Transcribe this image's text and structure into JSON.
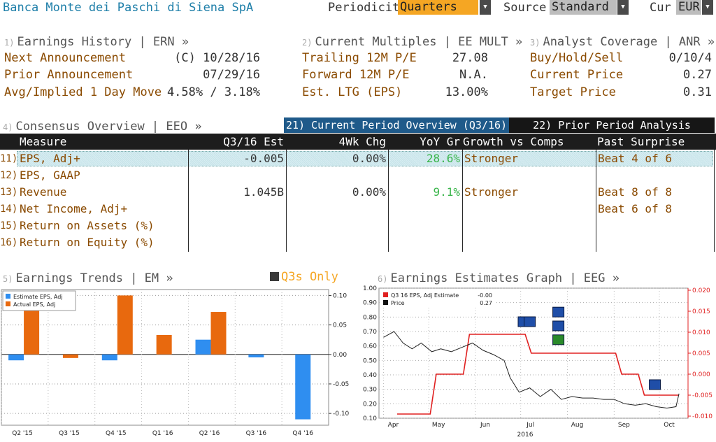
{
  "header": {
    "company": "Banca Monte dei Paschi di Siena SpA",
    "periodicity_label": "Periodicity",
    "periodicity_value": "Quarters",
    "source_label": "Source",
    "source_value": "Standard",
    "cur_label": "Cur",
    "cur_value": "EUR"
  },
  "earnings_history": {
    "num": "1)",
    "title": "Earnings History | ERN »",
    "rows": [
      {
        "label": "Next Announcement",
        "value": "(C)  10/28/16"
      },
      {
        "label": "Prior Announcement",
        "value": "07/29/16"
      },
      {
        "label": "Avg/Implied 1 Day Move",
        "value": "4.58% / 3.18%"
      }
    ]
  },
  "current_multiples": {
    "num": "2)",
    "title": "Current Multiples | EE MULT »",
    "rows": [
      {
        "label": "Trailing 12M P/E",
        "value": "27.08"
      },
      {
        "label": "Forward 12M P/E",
        "value": "N.A."
      },
      {
        "label": "Est. LTG (EPS)",
        "value": "13.00%"
      }
    ]
  },
  "analyst_coverage": {
    "num": "3)",
    "title": "Analyst Coverage | ANR »",
    "rows": [
      {
        "label": "Buy/Hold/Sell",
        "value": "0/10/4"
      },
      {
        "label": "Current Price",
        "value": "0.27"
      },
      {
        "label": "Target Price",
        "value": "0.31"
      }
    ]
  },
  "consensus": {
    "num": "4)",
    "title": "Consensus Overview | EEO »",
    "tab_current": "21) Current Period Overview (Q3/16)",
    "tab_prior": "22) Prior Period Analysis (Q2/16)",
    "columns": [
      "Measure",
      "Q3/16 Est",
      "4Wk Chg",
      "YoY Gr",
      "Growth vs Comps",
      "Past Surprise"
    ],
    "rows": [
      {
        "num": "11)",
        "measure": "EPS, Adj+",
        "est": "-0.005",
        "chg": "0.00%",
        "yoy": "28.6%",
        "growth": "Stronger",
        "surprise": "Beat 4 of 6"
      },
      {
        "num": "12)",
        "measure": "EPS, GAAP",
        "est": "",
        "chg": "",
        "yoy": "",
        "growth": "",
        "surprise": ""
      },
      {
        "num": "13)",
        "measure": "Revenue",
        "est": "1.045B",
        "chg": "0.00%",
        "yoy": "9.1%",
        "growth": "Stronger",
        "surprise": "Beat 8 of 8"
      },
      {
        "num": "14)",
        "measure": "Net Income, Adj+",
        "est": "",
        "chg": "",
        "yoy": "",
        "growth": "",
        "surprise": "Beat 6 of 8"
      },
      {
        "num": "15)",
        "measure": "Return on Assets (%)",
        "est": "",
        "chg": "",
        "yoy": "",
        "growth": "",
        "surprise": ""
      },
      {
        "num": "16)",
        "measure": "Return on Equity (%)",
        "est": "",
        "chg": "",
        "yoy": "",
        "growth": "",
        "surprise": ""
      }
    ]
  },
  "earnings_trends": {
    "num": "5)",
    "title": "Earnings Trends | EM »",
    "toggle": "Q3s Only"
  },
  "estimates_graph": {
    "num": "6)",
    "title": "Earnings Estimates Graph | EEG »"
  },
  "colors": {
    "estimate_blue": "#2f8ef0",
    "actual_orange": "#e8690e",
    "positive_green": "#39b54a",
    "estimate_red": "#e02020",
    "accent_orange": "#f5a623"
  },
  "chart_data": [
    {
      "type": "bar",
      "categories": [
        "Q2 '15",
        "Q3 '15",
        "Q4 '15",
        "Q1 '16",
        "Q2 '16",
        "Q3 '16",
        "Q4 '16"
      ],
      "series": [
        {
          "name": "Estimate EPS, Adj",
          "values": [
            -0.01,
            null,
            -0.01,
            null,
            0.025,
            -0.005,
            -0.11
          ]
        },
        {
          "name": "Actual EPS, Adj",
          "values": [
            0.08,
            -0.006,
            0.1,
            0.033,
            0.072,
            null,
            null
          ]
        }
      ],
      "ylim": [
        -0.12,
        0.11
      ],
      "yticks": [
        "0.10",
        "0.05",
        "0.00",
        "-0.05",
        "-0.10"
      ],
      "grid": true,
      "legend": "top-left"
    },
    {
      "type": "line",
      "x_ticks": [
        "Apr",
        "May",
        "Jun",
        "Jul",
        "Aug",
        "Sep",
        "Oct"
      ],
      "x_year_label": "2016",
      "left_yticks": [
        "1.00",
        "0.90",
        "0.80",
        "0.70",
        "0.60",
        "0.50",
        "0.40",
        "0.30",
        "0.20",
        "0.10"
      ],
      "right_yticks": [
        "0.020",
        "0.015",
        "0.010",
        "0.005",
        "0.000",
        "-0.005",
        "-0.010"
      ],
      "left_ylim": [
        0.1,
        1.0
      ],
      "right_ylim": [
        -0.0105,
        0.0205
      ],
      "legend": "top-left",
      "series": [
        {
          "name": "Q3 16 EPS, Adj Estimate",
          "legend_value": "-0.00",
          "axis": "right",
          "x": [
            "2016-04-10",
            "2016-05-02",
            "2016-05-06",
            "2016-05-24",
            "2016-05-28",
            "2016-07-04",
            "2016-07-08",
            "2016-09-02",
            "2016-09-06",
            "2016-09-17",
            "2016-09-21",
            "2016-10-14"
          ],
          "values": [
            -0.0095,
            -0.0095,
            0.0,
            0.0,
            0.0095,
            0.0095,
            0.005,
            0.005,
            0.0,
            0.0,
            -0.005,
            -0.005
          ]
        },
        {
          "name": "Price",
          "legend_value": "0.27",
          "axis": "left",
          "x": [
            "2016-04-01",
            "2016-04-08",
            "2016-04-14",
            "2016-04-20",
            "2016-04-26",
            "2016-05-03",
            "2016-05-09",
            "2016-05-16",
            "2016-05-23",
            "2016-05-30",
            "2016-06-06",
            "2016-06-13",
            "2016-06-20",
            "2016-06-24",
            "2016-06-30",
            "2016-07-07",
            "2016-07-14",
            "2016-07-21",
            "2016-07-28",
            "2016-08-04",
            "2016-08-11",
            "2016-08-18",
            "2016-08-25",
            "2016-09-01",
            "2016-09-08",
            "2016-09-15",
            "2016-09-22",
            "2016-09-29",
            "2016-10-06",
            "2016-10-12",
            "2016-10-14"
          ],
          "values": [
            0.66,
            0.7,
            0.62,
            0.58,
            0.62,
            0.56,
            0.58,
            0.56,
            0.59,
            0.62,
            0.57,
            0.54,
            0.5,
            0.38,
            0.28,
            0.31,
            0.25,
            0.3,
            0.23,
            0.25,
            0.24,
            0.24,
            0.23,
            0.23,
            0.2,
            0.19,
            0.2,
            0.18,
            0.17,
            0.18,
            0.27
          ]
        }
      ]
    }
  ]
}
